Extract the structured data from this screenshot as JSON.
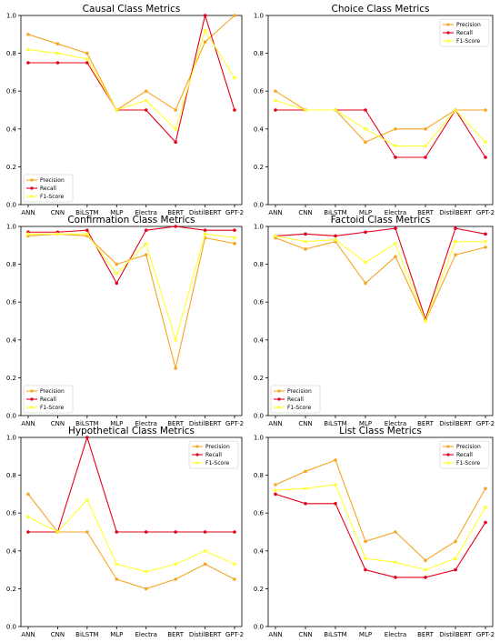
{
  "colors": {
    "precision": "#f5a623",
    "recall": "#e3001b",
    "f1": "#ffff33"
  },
  "chart_data": [
    {
      "type": "line",
      "title": "Causal Class Metrics",
      "categories": [
        "ANN",
        "CNN",
        "BiLSTM",
        "MLP",
        "Electra",
        "BERT",
        "DistilBERT",
        "GPT-2"
      ],
      "ylim": [
        0,
        1.0
      ],
      "yticks": [
        "0.0",
        "0.2",
        "0.4",
        "0.6",
        "0.8",
        "1.0"
      ],
      "legend_position": "lower-left",
      "series": [
        {
          "name": "Precision",
          "values": [
            0.9,
            0.85,
            0.8,
            0.5,
            0.6,
            0.5,
            0.86,
            1.0
          ]
        },
        {
          "name": "Recall",
          "values": [
            0.75,
            0.75,
            0.75,
            0.5,
            0.5,
            0.33,
            1.0,
            0.5
          ]
        },
        {
          "name": "F1-Score",
          "values": [
            0.82,
            0.8,
            0.77,
            0.5,
            0.55,
            0.4,
            0.92,
            0.67
          ]
        }
      ]
    },
    {
      "type": "line",
      "title": "Choice Class Metrics",
      "categories": [
        "ANN",
        "CNN",
        "BiLSTM",
        "MLP",
        "Electra",
        "BERT",
        "DistilBERT",
        "GPT-2"
      ],
      "ylim": [
        0,
        1.0
      ],
      "yticks": [
        "0.0",
        "0.2",
        "0.4",
        "0.6",
        "0.8",
        "1.0"
      ],
      "legend_position": "upper-right",
      "series": [
        {
          "name": "Precision",
          "values": [
            0.6,
            0.5,
            0.5,
            0.33,
            0.4,
            0.4,
            0.5,
            0.5
          ]
        },
        {
          "name": "Recall",
          "values": [
            0.5,
            0.5,
            0.5,
            0.5,
            0.25,
            0.25,
            0.5,
            0.25
          ]
        },
        {
          "name": "F1-Score",
          "values": [
            0.55,
            0.5,
            0.5,
            0.4,
            0.31,
            0.31,
            0.5,
            0.33
          ]
        }
      ]
    },
    {
      "type": "line",
      "title": "Confirmation Class Metrics",
      "categories": [
        "ANN",
        "CNN",
        "BiLSTM",
        "MLP",
        "Electra",
        "BERT",
        "DistilBERT",
        "GPT-2"
      ],
      "ylim": [
        0,
        1.0
      ],
      "yticks": [
        "0.0",
        "0.2",
        "0.4",
        "0.6",
        "0.8",
        "1.0"
      ],
      "legend_position": "lower-left",
      "series": [
        {
          "name": "Precision",
          "values": [
            0.95,
            0.96,
            0.95,
            0.8,
            0.85,
            0.25,
            0.94,
            0.91
          ]
        },
        {
          "name": "Recall",
          "values": [
            0.97,
            0.97,
            0.98,
            0.7,
            0.98,
            1.0,
            0.98,
            0.98
          ]
        },
        {
          "name": "F1-Score",
          "values": [
            0.96,
            0.96,
            0.96,
            0.75,
            0.91,
            0.4,
            0.96,
            0.94
          ]
        }
      ]
    },
    {
      "type": "line",
      "title": "Factoid Class Metrics",
      "categories": [
        "ANN",
        "CNN",
        "BiLSTM",
        "MLP",
        "Electra",
        "BERT",
        "DistilBERT",
        "GPT-2"
      ],
      "ylim": [
        0,
        1.0
      ],
      "yticks": [
        "0.0",
        "0.2",
        "0.4",
        "0.6",
        "0.8",
        "1.0"
      ],
      "legend_position": "lower-left",
      "series": [
        {
          "name": "Precision",
          "values": [
            0.94,
            0.88,
            0.92,
            0.7,
            0.84,
            0.5,
            0.85,
            0.89
          ]
        },
        {
          "name": "Recall",
          "values": [
            0.95,
            0.96,
            0.95,
            0.97,
            0.99,
            0.51,
            0.99,
            0.96
          ]
        },
        {
          "name": "F1-Score",
          "values": [
            0.95,
            0.92,
            0.93,
            0.81,
            0.91,
            0.5,
            0.92,
            0.92
          ]
        }
      ]
    },
    {
      "type": "line",
      "title": "Hypothetical Class Metrics",
      "categories": [
        "ANN",
        "CNN",
        "BiLSTM",
        "MLP",
        "Electra",
        "BERT",
        "DistilBERT",
        "GPT-2"
      ],
      "ylim": [
        0,
        1.0
      ],
      "yticks": [
        "0.0",
        "0.2",
        "0.4",
        "0.6",
        "0.8",
        "1.0"
      ],
      "legend_position": "upper-right",
      "series": [
        {
          "name": "Precision",
          "values": [
            0.7,
            0.5,
            0.5,
            0.25,
            0.2,
            0.25,
            0.33,
            0.25
          ]
        },
        {
          "name": "Recall",
          "values": [
            0.5,
            0.5,
            1.0,
            0.5,
            0.5,
            0.5,
            0.5,
            0.5
          ]
        },
        {
          "name": "F1-Score",
          "values": [
            0.58,
            0.5,
            0.67,
            0.33,
            0.29,
            0.33,
            0.4,
            0.33
          ]
        }
      ]
    },
    {
      "type": "line",
      "title": "List Class Metrics",
      "categories": [
        "ANN",
        "CNN",
        "BiLSTM",
        "MLP",
        "Electra",
        "BERT",
        "DistilBERT",
        "GPT-2"
      ],
      "ylim": [
        0,
        1.0
      ],
      "yticks": [
        "0.0",
        "0.2",
        "0.4",
        "0.6",
        "0.8",
        "1.0"
      ],
      "legend_position": "upper-right",
      "series": [
        {
          "name": "Precision",
          "values": [
            0.75,
            0.82,
            0.88,
            0.45,
            0.5,
            0.35,
            0.45,
            0.73
          ]
        },
        {
          "name": "Recall",
          "values": [
            0.7,
            0.65,
            0.65,
            0.3,
            0.26,
            0.26,
            0.3,
            0.55
          ]
        },
        {
          "name": "F1-Score",
          "values": [
            0.72,
            0.73,
            0.75,
            0.36,
            0.34,
            0.3,
            0.36,
            0.63
          ]
        }
      ]
    }
  ]
}
